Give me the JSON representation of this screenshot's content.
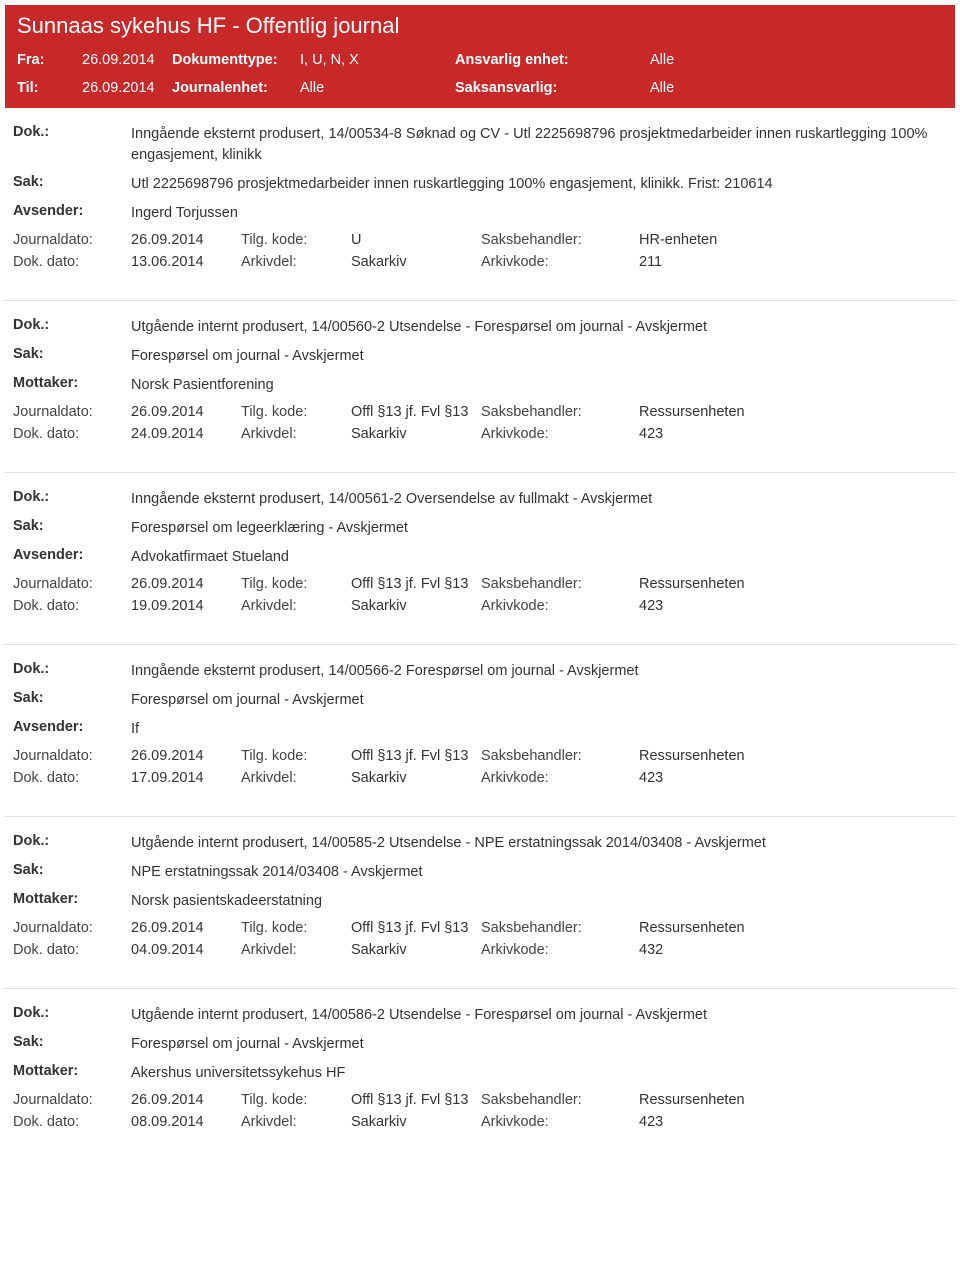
{
  "header": {
    "title": "Sunnaas sykehus HF - Offentlig journal",
    "row1": {
      "lbl1": "Fra:",
      "val1": "26.09.2014",
      "lbl2": "Dokumenttype:",
      "val2": "I, U, N, X",
      "lbl3": "Ansvarlig enhet:",
      "val3": "Alle"
    },
    "row2": {
      "lbl1": "Til:",
      "val1": "26.09.2014",
      "lbl2": "Journalenhet:",
      "val2": "Alle",
      "lbl3": "Saksansvarlig:",
      "val3": "Alle"
    }
  },
  "labels": {
    "dok": "Dok.:",
    "sak": "Sak:",
    "avsender": "Avsender:",
    "mottaker": "Mottaker:",
    "journaldato": "Journaldato:",
    "dokdato": "Dok. dato:",
    "tilgkode": "Tilg. kode:",
    "arkivdel": "Arkivdel:",
    "saksbehandler": "Saksbehandler:",
    "arkivkode": "Arkivkode:"
  },
  "entries": [
    {
      "dok": "Inngående eksternt produsert, 14/00534-8 Søknad og CV - Utl 2225698796 prosjektmedarbeider innen ruskartlegging 100% engasjement, klinikk",
      "sak": "Utl 2225698796 prosjektmedarbeider innen ruskartlegging 100% engasjement, klinikk. Frist: 210614",
      "partyLabel": "Avsender:",
      "party": "Ingerd Torjussen",
      "journaldato": "26.09.2014",
      "tilgkode": "U",
      "saksbehandler": "HR-enheten",
      "dokdato": "13.06.2014",
      "arkivdel": "Sakarkiv",
      "arkivkode": "211"
    },
    {
      "dok": "Utgående internt produsert, 14/00560-2 Utsendelse - Forespørsel om journal - Avskjermet",
      "sak": "Forespørsel om journal - Avskjermet",
      "partyLabel": "Mottaker:",
      "party": "Norsk Pasientforening",
      "journaldato": "26.09.2014",
      "tilgkode": "Offl §13 jf. Fvl §13",
      "saksbehandler": "Ressursenheten",
      "dokdato": "24.09.2014",
      "arkivdel": "Sakarkiv",
      "arkivkode": "423"
    },
    {
      "dok": "Inngående eksternt produsert, 14/00561-2 Oversendelse av fullmakt - Avskjermet",
      "sak": "Forespørsel om legeerklæring - Avskjermet",
      "partyLabel": "Avsender:",
      "party": "Advokatfirmaet Stueland",
      "journaldato": "26.09.2014",
      "tilgkode": "Offl §13 jf. Fvl §13",
      "saksbehandler": "Ressursenheten",
      "dokdato": "19.09.2014",
      "arkivdel": "Sakarkiv",
      "arkivkode": "423"
    },
    {
      "dok": "Inngående eksternt produsert, 14/00566-2 Forespørsel om journal - Avskjermet",
      "sak": "Forespørsel om journal - Avskjermet",
      "partyLabel": "Avsender:",
      "party": "If",
      "journaldato": "26.09.2014",
      "tilgkode": "Offl §13 jf. Fvl §13",
      "saksbehandler": "Ressursenheten",
      "dokdato": "17.09.2014",
      "arkivdel": "Sakarkiv",
      "arkivkode": "423"
    },
    {
      "dok": "Utgående internt produsert, 14/00585-2 Utsendelse - NPE erstatningssak 2014/03408 - Avskjermet",
      "sak": "NPE erstatningssak 2014/03408 - Avskjermet",
      "partyLabel": "Mottaker:",
      "party": "Norsk pasientskadeerstatning",
      "journaldato": "26.09.2014",
      "tilgkode": "Offl §13 jf. Fvl §13",
      "saksbehandler": "Ressursenheten",
      "dokdato": "04.09.2014",
      "arkivdel": "Sakarkiv",
      "arkivkode": "432"
    },
    {
      "dok": "Utgående internt produsert, 14/00586-2 Utsendelse - Forespørsel om journal - Avskjermet",
      "sak": "Forespørsel om journal - Avskjermet",
      "partyLabel": "Mottaker:",
      "party": "Akershus universitetssykehus HF",
      "journaldato": "26.09.2014",
      "tilgkode": "Offl §13 jf. Fvl §13",
      "saksbehandler": "Ressursenheten",
      "dokdato": "08.09.2014",
      "arkivdel": "Sakarkiv",
      "arkivkode": "423"
    }
  ]
}
